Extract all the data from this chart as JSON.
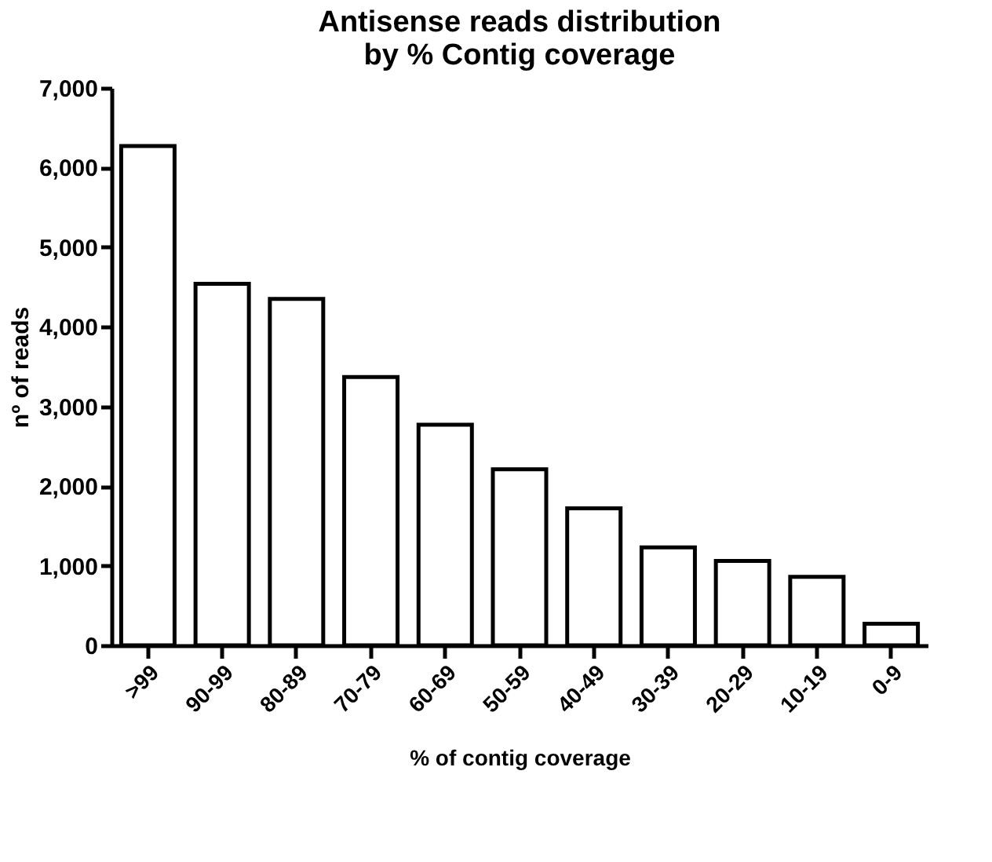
{
  "chart_data": {
    "type": "bar",
    "title": [
      "Antisense reads distribution",
      "by % Contig coverage"
    ],
    "xlabel": "% of contig coverage",
    "ylabel": "nº of reads",
    "categories": [
      ">99",
      "90-99",
      "80-89",
      "70-79",
      "60-69",
      "50-59",
      "40-49",
      "30-39",
      "20-29",
      "10-19",
      "0-9"
    ],
    "values": [
      6270,
      4540,
      4350,
      3370,
      2770,
      2210,
      1720,
      1230,
      1060,
      860,
      270
    ],
    "color": "#ffffff",
    "ylim": [
      0,
      7000
    ],
    "yticks": [
      {
        "value": 0,
        "label": "0"
      },
      {
        "value": 1000,
        "label": "1,000"
      },
      {
        "value": 2000,
        "label": "2,000"
      },
      {
        "value": 3000,
        "label": "3,000"
      },
      {
        "value": 4000,
        "label": "4,000"
      },
      {
        "value": 5000,
        "label": "5,000"
      },
      {
        "value": 6000,
        "label": "6,000"
      },
      {
        "value": 7000,
        "label": "7,000"
      }
    ],
    "grid": false
  }
}
